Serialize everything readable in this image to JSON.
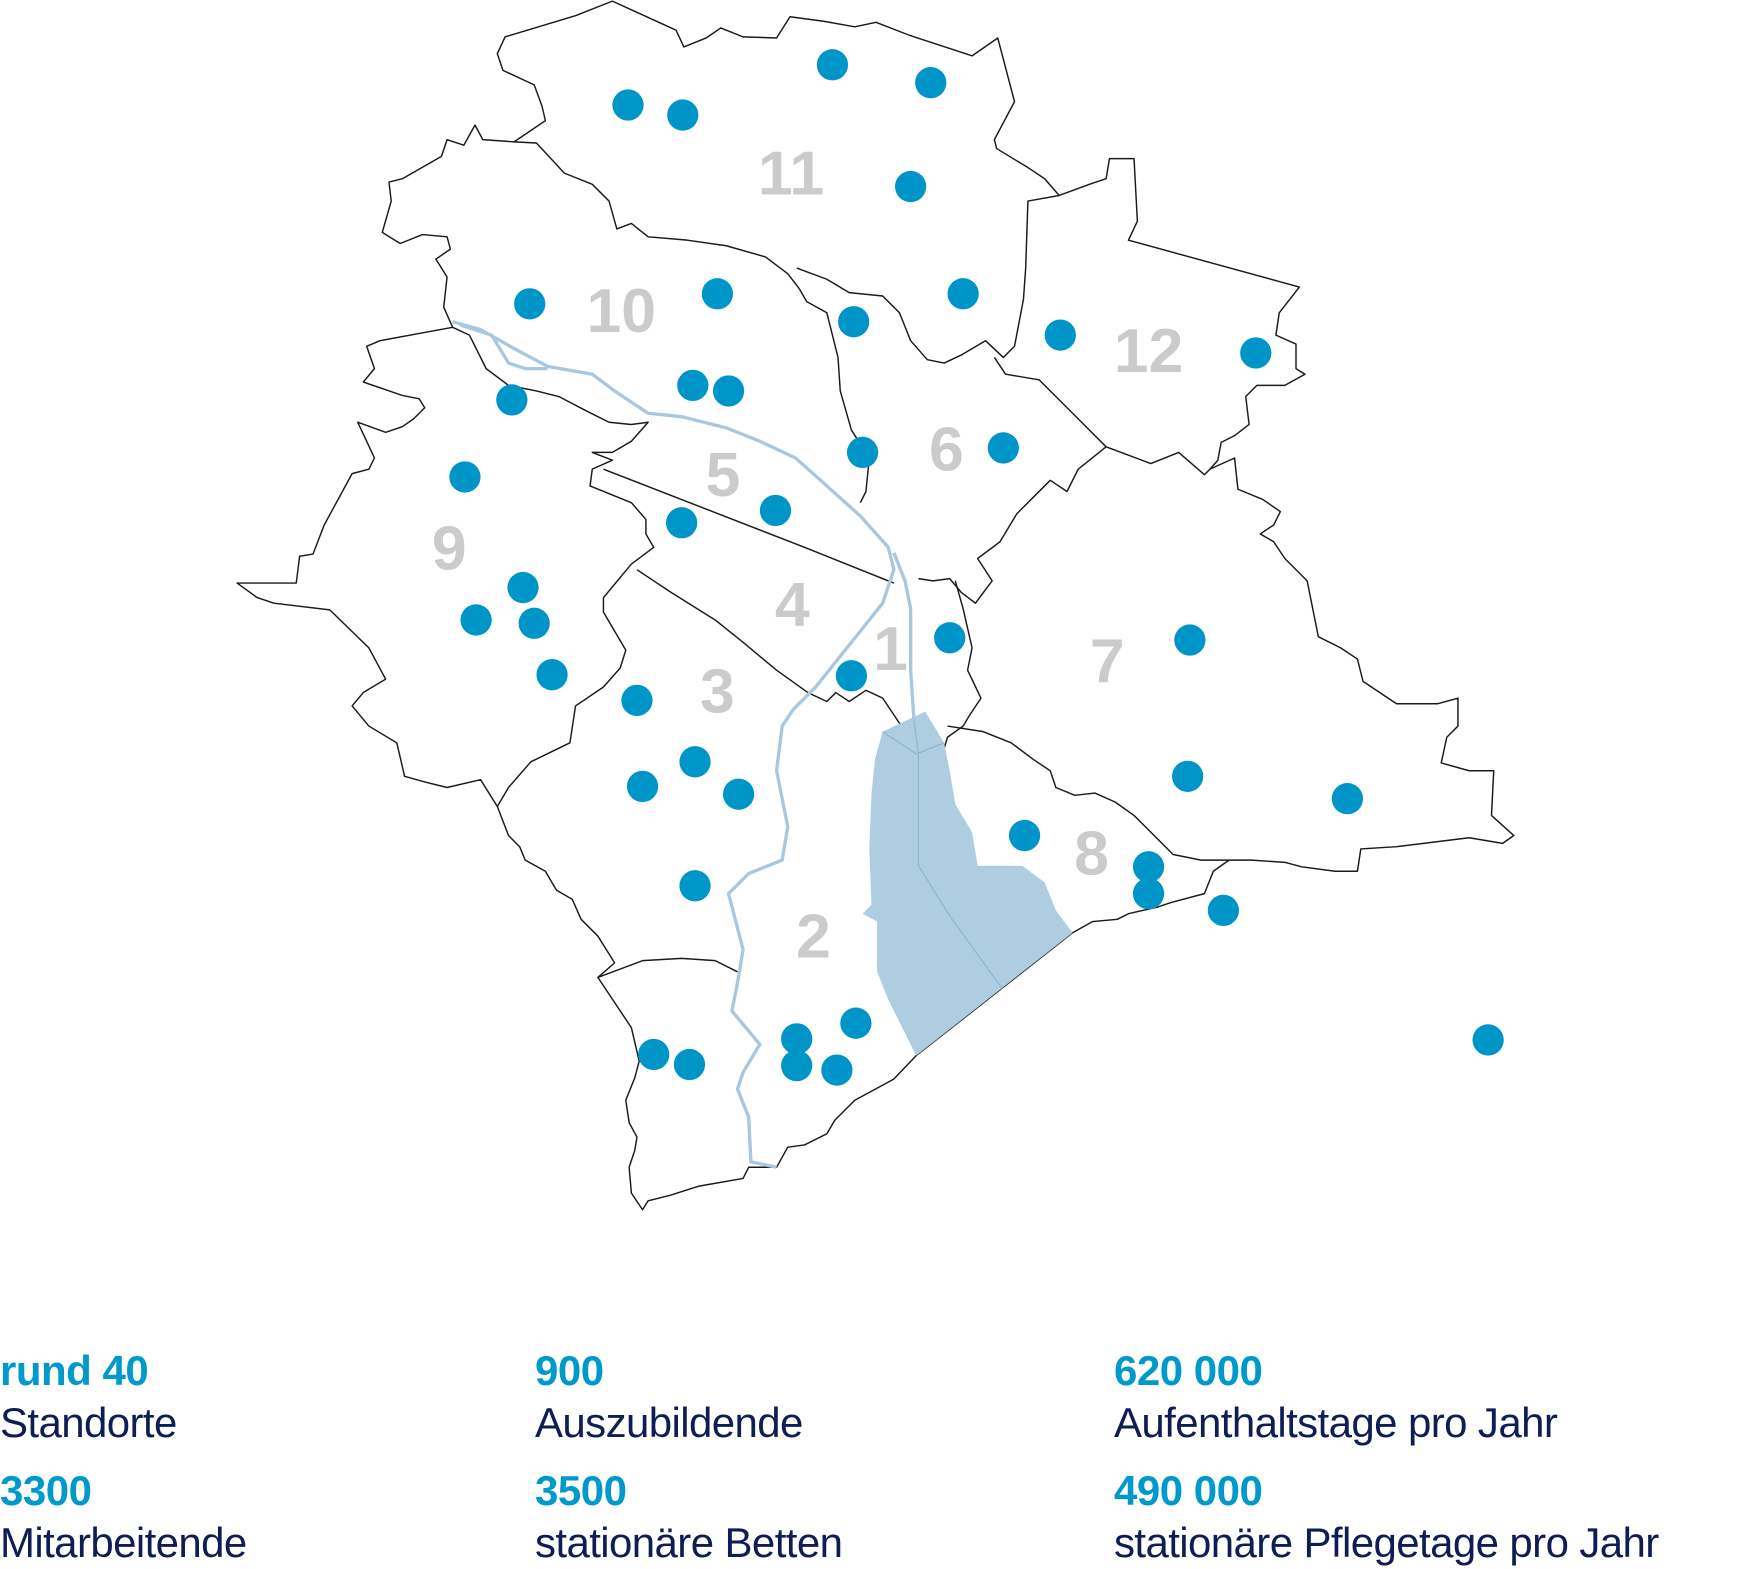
{
  "colors": {
    "marker": "#0095c8",
    "lake": "#afcde1",
    "river": "#a9c8df",
    "border": "#1a1a1a",
    "district_label": "#cbcbcb",
    "stat_value": "#0099cc",
    "stat_label": "#0f1d55"
  },
  "map": {
    "districts": [
      "1",
      "2",
      "3",
      "4",
      "5",
      "6",
      "7",
      "8",
      "9",
      "10",
      "11",
      "12"
    ],
    "marker_icon": "location-dot"
  },
  "stats": [
    {
      "value": "rund 40",
      "label": "Standorte"
    },
    {
      "value": "3300",
      "label": "Mitarbeitende"
    },
    {
      "value": "900",
      "label": "Auszubildende"
    },
    {
      "value": "3500",
      "label": "stationäre Betten"
    },
    {
      "value": "620 000",
      "label": "Aufenthaltstage pro Jahr"
    },
    {
      "value": "490 000",
      "label": "stationäre Pflegetage pro Jahr"
    }
  ]
}
